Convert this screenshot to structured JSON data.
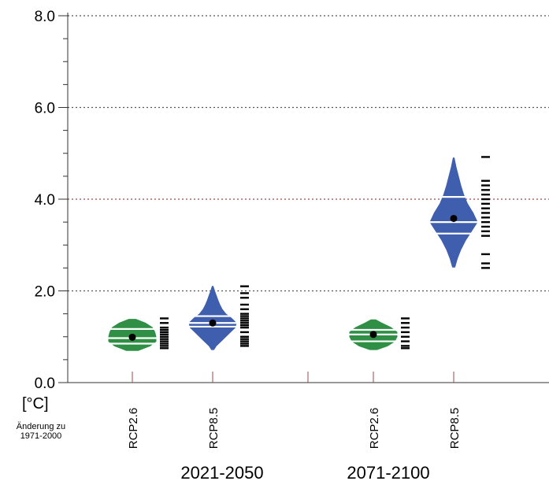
{
  "chart_data": {
    "type": "violin",
    "title": "",
    "xlabel": "",
    "ylabel": "[°C]",
    "ylabel_note": "Änderung zu\n1971-2000",
    "ylim": [
      0,
      8
    ],
    "yticks": [
      "0.0",
      "2.0",
      "4.0",
      "6.0",
      "8.0"
    ],
    "grid": true,
    "periods": [
      "2021-2050",
      "2071-2100"
    ],
    "colors": {
      "RCP2.6": "#2f8f45",
      "RCP8.5": "#3f5fae"
    },
    "groups": [
      {
        "scenario": "RCP2.6",
        "period": "2021-2050",
        "min": 0.7,
        "p15": 0.85,
        "median": 0.97,
        "mean": 0.99,
        "p85": 1.17,
        "max": 1.38,
        "members": [
          1.4,
          1.3,
          1.2,
          1.15,
          1.1,
          1.05,
          1.0,
          0.95,
          0.9,
          0.85,
          0.8,
          0.75
        ],
        "shape": [
          [
            0.7,
            0.25
          ],
          [
            0.8,
            0.75
          ],
          [
            0.9,
            1.0
          ],
          [
            1.0,
            1.0
          ],
          [
            1.1,
            0.95
          ],
          [
            1.2,
            0.85
          ],
          [
            1.3,
            0.55
          ],
          [
            1.38,
            0.15
          ]
        ]
      },
      {
        "scenario": "RCP8.5",
        "period": "2021-2050",
        "min": 0.72,
        "p15": 1.22,
        "median": 1.3,
        "mean": 1.3,
        "p85": 1.45,
        "max": 2.1,
        "members": [
          2.1,
          1.95,
          1.85,
          1.7,
          1.6,
          1.5,
          1.45,
          1.4,
          1.35,
          1.3,
          1.25,
          1.2,
          1.1,
          1.0,
          0.95,
          0.9,
          0.85,
          0.8
        ],
        "shape": [
          [
            0.72,
            0.05
          ],
          [
            0.8,
            0.15
          ],
          [
            0.9,
            0.35
          ],
          [
            1.0,
            0.55
          ],
          [
            1.1,
            0.75
          ],
          [
            1.2,
            0.95
          ],
          [
            1.3,
            1.0
          ],
          [
            1.4,
            0.8
          ],
          [
            1.5,
            0.55
          ],
          [
            1.6,
            0.4
          ],
          [
            1.7,
            0.3
          ],
          [
            1.8,
            0.22
          ],
          [
            1.9,
            0.15
          ],
          [
            2.0,
            0.08
          ],
          [
            2.1,
            0.02
          ]
        ]
      },
      {
        "scenario": "RCP2.6",
        "period": "2071-2100",
        "min": 0.72,
        "p15": 0.9,
        "median": 1.05,
        "mean": 1.05,
        "p85": 1.15,
        "max": 1.37,
        "members": [
          1.4,
          1.3,
          1.2,
          1.1,
          1.0,
          0.9,
          0.8,
          0.75
        ],
        "shape": [
          [
            0.72,
            0.15
          ],
          [
            0.8,
            0.6
          ],
          [
            0.9,
            0.9
          ],
          [
            1.0,
            1.0
          ],
          [
            1.1,
            1.0
          ],
          [
            1.2,
            0.75
          ],
          [
            1.3,
            0.35
          ],
          [
            1.37,
            0.1
          ]
        ]
      },
      {
        "scenario": "RCP8.5",
        "period": "2071-2100",
        "min": 2.52,
        "p15": 3.25,
        "median": 3.5,
        "mean": 3.58,
        "p85": 4.05,
        "max": 4.9,
        "members": [
          4.92,
          4.4,
          4.3,
          4.2,
          4.1,
          4.0,
          3.9,
          3.8,
          3.7,
          3.6,
          3.5,
          3.4,
          3.3,
          3.2,
          2.8,
          2.6,
          2.5
        ],
        "shape": [
          [
            2.52,
            0.05
          ],
          [
            2.7,
            0.15
          ],
          [
            2.9,
            0.3
          ],
          [
            3.1,
            0.5
          ],
          [
            3.3,
            0.75
          ],
          [
            3.5,
            1.0
          ],
          [
            3.7,
            0.82
          ],
          [
            3.9,
            0.58
          ],
          [
            4.1,
            0.42
          ],
          [
            4.3,
            0.3
          ],
          [
            4.5,
            0.2
          ],
          [
            4.7,
            0.1
          ],
          [
            4.9,
            0.02
          ]
        ]
      }
    ]
  }
}
